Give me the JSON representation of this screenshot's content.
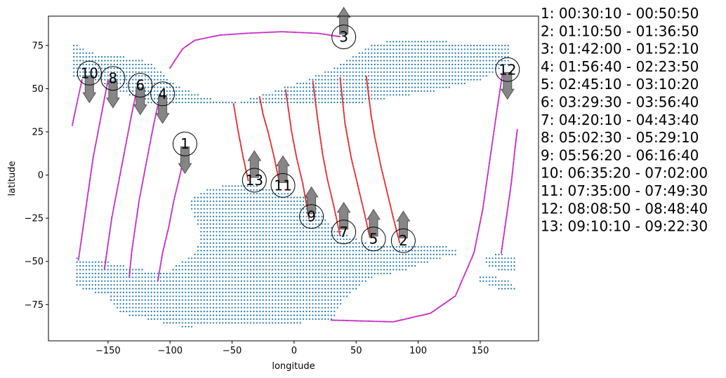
{
  "chart_data": {
    "type": "scatter",
    "xlabel": "longitude",
    "ylabel": "latitude",
    "xlim": [
      -198,
      197
    ],
    "ylim": [
      -96,
      92
    ],
    "xticks": [
      -150,
      -100,
      -50,
      0,
      50,
      100,
      150
    ],
    "yticks": [
      -75,
      -50,
      -25,
      0,
      25,
      50,
      75
    ],
    "xtick_labels": [
      "−150",
      "−100",
      "−50",
      "0",
      "50",
      "100",
      "150"
    ],
    "ytick_labels": [
      "−75",
      "−50",
      "−25",
      "0",
      "25",
      "50",
      "75"
    ],
    "grid": false,
    "legend_placement": "right",
    "colors": {
      "land_points": "#1f77b4",
      "ascending_pass": "#e41a1c",
      "descending_pass": "#c31bc3",
      "arrow_fill": "#7f7f7f",
      "arrow_edge": "#555555",
      "axes": "#000000"
    },
    "passes": [
      {
        "id": "1",
        "label_lon": -88,
        "label_lat": 18,
        "arrow": "down",
        "color": "descending_pass",
        "track": [
          [
            -87,
            16
          ],
          [
            -92,
            0
          ],
          [
            -97,
            -15
          ],
          [
            -101,
            -30
          ],
          [
            -106,
            -45
          ],
          [
            -110,
            -62
          ]
        ]
      },
      {
        "id": "2",
        "label_lon": 88,
        "label_lat": -38,
        "arrow": "up",
        "color": "ascending_pass",
        "track": [
          [
            85,
            -39
          ],
          [
            80,
            -25
          ],
          [
            75,
            -10
          ],
          [
            70,
            5
          ],
          [
            65,
            22
          ],
          [
            62,
            35
          ],
          [
            58,
            58
          ]
        ]
      },
      {
        "id": "3",
        "label_lon": 40,
        "label_lat": 80,
        "arrow": "up",
        "color": "descending_pass",
        "track": [
          [
            -100,
            62
          ],
          [
            -90,
            73
          ],
          [
            -80,
            78
          ],
          [
            -60,
            81
          ],
          [
            -40,
            82
          ],
          [
            -10,
            83
          ],
          [
            20,
            82
          ],
          [
            38,
            80
          ]
        ]
      },
      {
        "id": "4",
        "label_lon": -106,
        "label_lat": 47,
        "arrow": "down",
        "color": "descending_pass",
        "track": [
          [
            -108,
            46
          ],
          [
            -113,
            30
          ],
          [
            -117,
            15
          ],
          [
            -121,
            0
          ],
          [
            -125,
            -15
          ],
          [
            -128,
            -30
          ],
          [
            -131,
            -45
          ],
          [
            -133,
            -60
          ]
        ]
      },
      {
        "id": "5",
        "label_lon": 64,
        "label_lat": -37,
        "arrow": "up",
        "color": "ascending_pass",
        "track": [
          [
            61,
            -36
          ],
          [
            56,
            -20
          ],
          [
            51,
            -5
          ],
          [
            46,
            10
          ],
          [
            41,
            30
          ],
          [
            37,
            57
          ]
        ]
      },
      {
        "id": "6",
        "label_lon": -124,
        "label_lat": 52,
        "arrow": "down",
        "color": "descending_pass",
        "track": [
          [
            -126,
            52
          ],
          [
            -131,
            35
          ],
          [
            -135,
            20
          ],
          [
            -139,
            5
          ],
          [
            -143,
            -10
          ],
          [
            -147,
            -25
          ],
          [
            -150,
            -40
          ],
          [
            -153,
            -55
          ]
        ]
      },
      {
        "id": "7",
        "label_lon": 40,
        "label_lat": -33,
        "arrow": "up",
        "color": "ascending_pass",
        "track": [
          [
            37,
            -35
          ],
          [
            32,
            -18
          ],
          [
            27,
            -3
          ],
          [
            23,
            12
          ],
          [
            19,
            32
          ],
          [
            15,
            55
          ]
        ]
      },
      {
        "id": "8",
        "label_lon": -146,
        "label_lat": 56,
        "arrow": "down",
        "color": "descending_pass",
        "track": [
          [
            -150,
            55
          ],
          [
            -154,
            40
          ],
          [
            -158,
            25
          ],
          [
            -162,
            10
          ],
          [
            -166,
            -10
          ],
          [
            -169,
            -25
          ],
          [
            -172,
            -40
          ],
          [
            -174,
            -50
          ]
        ]
      },
      {
        "id": "9",
        "label_lon": 14,
        "label_lat": -24,
        "arrow": "up",
        "color": "ascending_pass",
        "track": [
          [
            12,
            -25
          ],
          [
            7,
            -5
          ],
          [
            2,
            10
          ],
          [
            -2,
            25
          ],
          [
            -7,
            50
          ]
        ]
      },
      {
        "id": "10",
        "label_lon": -165,
        "label_lat": 59,
        "arrow": "down",
        "color": "descending_pass",
        "track": [
          [
            -171,
            55
          ],
          [
            -174,
            45
          ],
          [
            -177,
            35
          ],
          [
            -179,
            28
          ]
        ]
      },
      {
        "id": "11",
        "label_lon": -9,
        "label_lat": -6,
        "arrow": "up",
        "color": "ascending_pass",
        "track": [
          [
            -12,
            -4
          ],
          [
            -16,
            10
          ],
          [
            -21,
            25
          ],
          [
            -25,
            35
          ],
          [
            -28,
            46
          ]
        ]
      },
      {
        "id": "12",
        "label_lon": 172,
        "label_lat": 61,
        "arrow": "down",
        "color": "descending_pass",
        "track": [
          [
            30,
            -84
          ],
          [
            80,
            -85
          ],
          [
            110,
            -80
          ],
          [
            130,
            -70
          ],
          [
            145,
            -45
          ],
          [
            152,
            -20
          ],
          [
            158,
            10
          ],
          [
            163,
            35
          ],
          [
            168,
            59
          ]
        ]
      },
      {
        "id": "13",
        "label_lon": -32,
        "label_lat": -3,
        "arrow": "up",
        "color": "ascending_pass",
        "track": [
          [
            -37,
            -3
          ],
          [
            -41,
            10
          ],
          [
            -45,
            25
          ],
          [
            -49,
            42
          ]
        ]
      },
      {
        "id": "12b",
        "label_lon": null,
        "label_lat": null,
        "arrow": null,
        "color": "descending_pass",
        "track": [
          [
            167,
            -45
          ],
          [
            171,
            -25
          ],
          [
            175,
            -5
          ],
          [
            178,
            15
          ],
          [
            180,
            27
          ]
        ]
      }
    ],
    "land_regions": [
      [
        [
          -178,
          77
        ],
        [
          -170,
          73
        ],
        [
          -158,
          70
        ],
        [
          -145,
          70
        ],
        [
          -130,
          67
        ],
        [
          -118,
          66
        ],
        [
          -108,
          60
        ],
        [
          -95,
          52
        ],
        [
          -80,
          47
        ],
        [
          -60,
          43
        ],
        [
          -45,
          42
        ],
        [
          -20,
          48
        ],
        [
          10,
          55
        ],
        [
          40,
          65
        ],
        [
          60,
          75
        ],
        [
          80,
          78
        ],
        [
          100,
          78
        ],
        [
          130,
          77
        ],
        [
          175,
          77
        ],
        [
          175,
          65
        ],
        [
          150,
          55
        ],
        [
          110,
          48
        ],
        [
          80,
          45
        ],
        [
          40,
          40
        ],
        [
          10,
          40
        ],
        [
          -20,
          40
        ],
        [
          -45,
          40
        ],
        [
          -65,
          40
        ],
        [
          -75,
          42
        ],
        [
          -90,
          40
        ],
        [
          -110,
          40
        ],
        [
          -130,
          45
        ],
        [
          -160,
          55
        ],
        [
          -178,
          57
        ]
      ],
      [
        [
          -85,
          -15
        ],
        [
          -70,
          -8
        ],
        [
          -50,
          -5
        ],
        [
          -30,
          -6
        ],
        [
          -10,
          -10
        ],
        [
          10,
          -12
        ],
        [
          20,
          -20
        ],
        [
          30,
          -30
        ],
        [
          60,
          -40
        ],
        [
          120,
          -40
        ],
        [
          135,
          -45
        ],
        [
          110,
          -50
        ],
        [
          90,
          -55
        ],
        [
          60,
          -60
        ],
        [
          40,
          -72
        ],
        [
          30,
          -85
        ],
        [
          -90,
          -88
        ],
        [
          -110,
          -85
        ],
        [
          -140,
          -80
        ],
        [
          -150,
          -70
        ],
        [
          -175,
          -65
        ],
        [
          -175,
          -48
        ],
        [
          -150,
          -50
        ],
        [
          -140,
          -52
        ],
        [
          -120,
          -55
        ],
        [
          -100,
          -55
        ],
        [
          -80,
          -45
        ],
        [
          -75,
          -35
        ],
        [
          -80,
          -25
        ]
      ],
      [
        [
          155,
          -48
        ],
        [
          165,
          -45
        ],
        [
          178,
          -48
        ],
        [
          178,
          -56
        ],
        [
          165,
          -55
        ],
        [
          155,
          -52
        ]
      ],
      [
        [
          150,
          -57
        ],
        [
          170,
          -60
        ],
        [
          178,
          -64
        ],
        [
          178,
          -68
        ],
        [
          165,
          -66
        ],
        [
          150,
          -62
        ]
      ]
    ],
    "legend": [
      "1:  00:30:10 - 00:50:50",
      "2:  01:10:50 - 01:36:50",
      "3:  01:42:00 - 01:52:10",
      "4:  01:56:40 - 02:23:50",
      "5:  02:45:10 - 03:10:20",
      "6:  03:29:30 - 03:56:40",
      "7:  04:20:10 - 04:43:40",
      "8:  05:02:30 - 05:29:10",
      "9:  05:56:20 - 06:16:40",
      "10:  06:35:20 - 07:02:00",
      "11:  07:35:00 - 07:49:30",
      "12:  08:08:50 - 08:48:40",
      "13:  09:10:10 - 09:22:30"
    ]
  }
}
